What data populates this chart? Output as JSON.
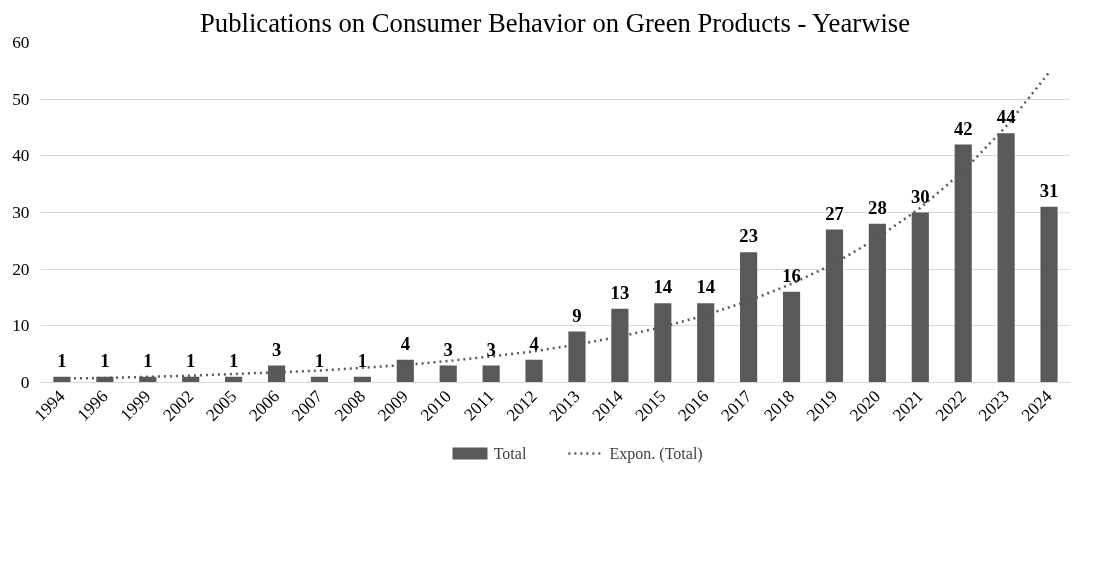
{
  "chart_data": {
    "type": "bar",
    "title": "Publications on Consumer Behavior on Green Products - Yearwise",
    "categories": [
      "1994",
      "1996",
      "1999",
      "2002",
      "2005",
      "2006",
      "2007",
      "2008",
      "2009",
      "2010",
      "2011",
      "2012",
      "2013",
      "2014",
      "2015",
      "2016",
      "2017",
      "2018",
      "2019",
      "2020",
      "2021",
      "2022",
      "2023",
      "2024"
    ],
    "series": [
      {
        "name": "Total",
        "color": "#595959",
        "values": [
          1,
          1,
          1,
          1,
          1,
          3,
          1,
          1,
          4,
          3,
          3,
          4,
          9,
          13,
          14,
          14,
          23,
          16,
          27,
          28,
          30,
          42,
          44,
          31
        ],
        "value_labels": [
          "1",
          "1",
          "1",
          "1",
          "1",
          "3",
          "1",
          "1",
          "4",
          "3",
          "3",
          "4",
          "9",
          "13",
          "14",
          "14",
          "23",
          "16",
          "27",
          "28",
          "30",
          "42",
          "44",
          "31"
        ]
      },
      {
        "name": "Expon. (Total)",
        "type": "line",
        "color": "#595959",
        "line_style": "dotted",
        "values": [
          0.7,
          0.8,
          1.0,
          1.2,
          1.5,
          1.8,
          2.1,
          2.6,
          3.1,
          3.8,
          4.6,
          5.5,
          6.7,
          8.1,
          9.8,
          11.9,
          14.4,
          17.4,
          21,
          25.5,
          30.8,
          37.3,
          45.2,
          54.7
        ]
      }
    ],
    "ylim": [
      0,
      60
    ],
    "yticks": [
      0,
      10,
      20,
      30,
      40,
      50,
      60
    ],
    "grid": "y",
    "legend": "bottom"
  }
}
